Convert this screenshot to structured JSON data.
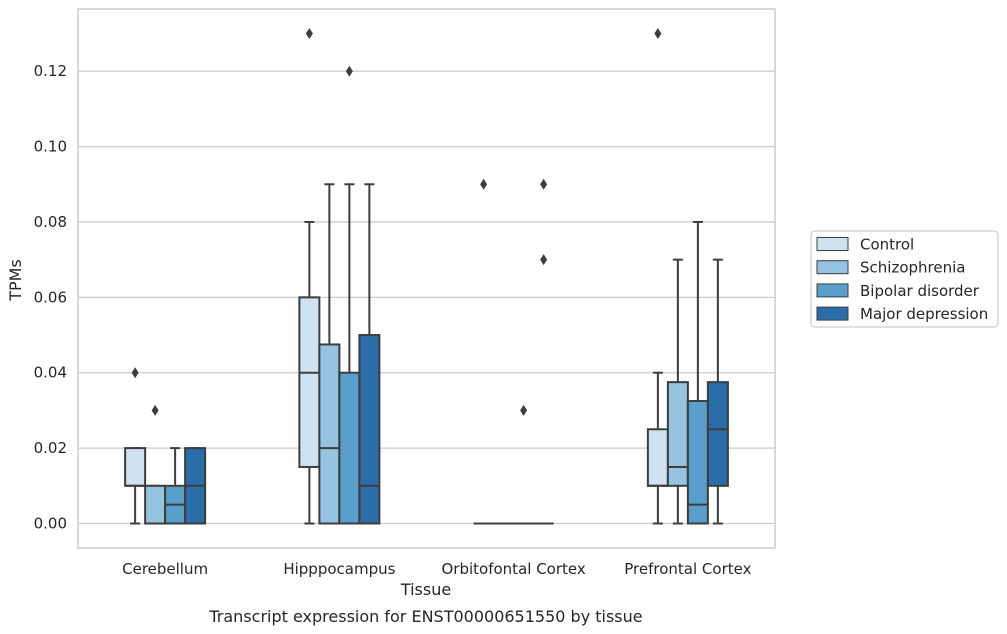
{
  "chart_data": {
    "type": "box",
    "xlabel": "Tissue",
    "ylabel": "TPMs",
    "caption": "Transcript expression for ENST00000651550 by tissue",
    "ylim": [
      -0.0065,
      0.1365
    ],
    "yticks": [
      0.0,
      0.02,
      0.04,
      0.06,
      0.08,
      0.1,
      0.12
    ],
    "ytick_labels": [
      "0.00",
      "0.02",
      "0.04",
      "0.06",
      "0.08",
      "0.10",
      "0.12"
    ],
    "grid": "horizontal",
    "legend_position": "right",
    "categories": [
      "Cerebellum",
      "Hipppocampus",
      "Orbitofontal Cortex",
      "Prefrontal Cortex"
    ],
    "series": [
      {
        "name": "Control",
        "color": "#d0e1f1",
        "boxes": [
          {
            "whislo": 0.0,
            "q1": 0.01,
            "med": 0.01,
            "q3": 0.02,
            "whishi": 0.02,
            "fliers": [
              0.04
            ]
          },
          {
            "whislo": 0.0,
            "q1": 0.015,
            "med": 0.04,
            "q3": 0.06,
            "whishi": 0.08,
            "fliers": [
              0.13
            ]
          },
          {
            "whislo": 0.0,
            "q1": 0.0,
            "med": 0.0,
            "q3": 0.0,
            "whishi": 0.0,
            "fliers": [
              0.09
            ]
          },
          {
            "whislo": 0.0,
            "q1": 0.01,
            "med": 0.01,
            "q3": 0.025,
            "whishi": 0.04,
            "fliers": [
              0.13
            ]
          }
        ]
      },
      {
        "name": "Schizophrenia",
        "color": "#94c4df",
        "boxes": [
          {
            "whislo": 0.0,
            "q1": 0.0,
            "med": 0.0,
            "q3": 0.01,
            "whishi": 0.01,
            "fliers": [
              0.03
            ]
          },
          {
            "whislo": 0.0,
            "q1": 0.0,
            "med": 0.02,
            "q3": 0.0475,
            "whishi": 0.09,
            "fliers": []
          },
          {
            "whislo": 0.0,
            "q1": 0.0,
            "med": 0.0,
            "q3": 0.0,
            "whishi": 0.0,
            "fliers": []
          },
          {
            "whislo": 0.0,
            "q1": 0.01,
            "med": 0.015,
            "q3": 0.0375,
            "whishi": 0.07,
            "fliers": []
          }
        ]
      },
      {
        "name": "Bipolar disorder",
        "color": "#5a9fcb",
        "boxes": [
          {
            "whislo": 0.0,
            "q1": 0.0,
            "med": 0.005,
            "q3": 0.01,
            "whishi": 0.02,
            "fliers": []
          },
          {
            "whislo": 0.0,
            "q1": 0.0,
            "med": 0.0,
            "q3": 0.04,
            "whishi": 0.09,
            "fliers": [
              0.12
            ]
          },
          {
            "whislo": 0.0,
            "q1": 0.0,
            "med": 0.0,
            "q3": 0.0,
            "whishi": 0.0,
            "fliers": [
              0.03
            ]
          },
          {
            "whislo": 0.0,
            "q1": 0.0,
            "med": 0.005,
            "q3": 0.0325,
            "whishi": 0.08,
            "fliers": []
          }
        ]
      },
      {
        "name": "Major depression",
        "color": "#2b6da9",
        "boxes": [
          {
            "whislo": 0.0,
            "q1": 0.0,
            "med": 0.01,
            "q3": 0.02,
            "whishi": 0.02,
            "fliers": []
          },
          {
            "whislo": 0.0,
            "q1": 0.0,
            "med": 0.01,
            "q3": 0.05,
            "whishi": 0.09,
            "fliers": []
          },
          {
            "whislo": 0.0,
            "q1": 0.0,
            "med": 0.0,
            "q3": 0.0,
            "whishi": 0.0,
            "fliers": [
              0.09,
              0.07
            ]
          },
          {
            "whislo": 0.0,
            "q1": 0.01,
            "med": 0.025,
            "q3": 0.0375,
            "whishi": 0.07,
            "fliers": []
          }
        ]
      }
    ]
  }
}
